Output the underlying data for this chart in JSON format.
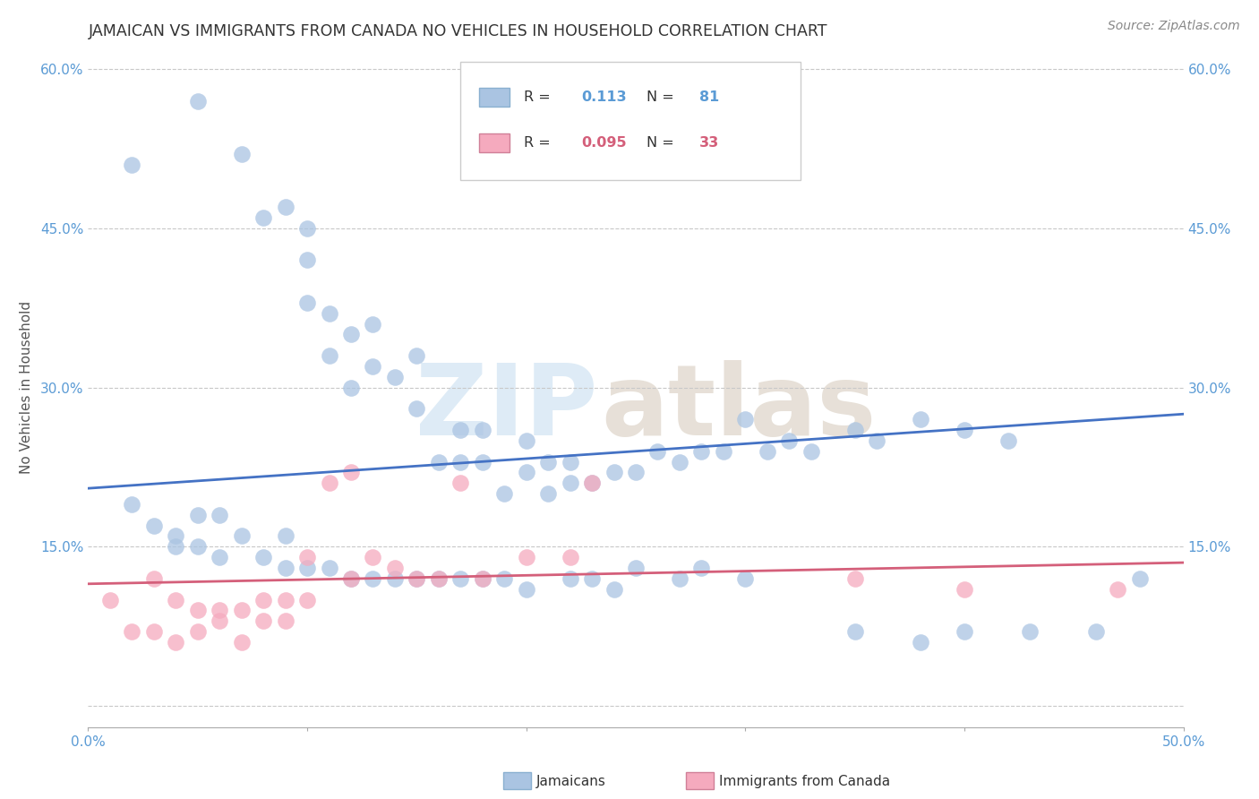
{
  "title": "JAMAICAN VS IMMIGRANTS FROM CANADA NO VEHICLES IN HOUSEHOLD CORRELATION CHART",
  "source": "Source: ZipAtlas.com",
  "ylabel": "No Vehicles in Household",
  "xlim": [
    0.0,
    0.5
  ],
  "ylim": [
    -0.02,
    0.62
  ],
  "xticks": [
    0.0,
    0.1,
    0.2,
    0.3,
    0.4,
    0.5
  ],
  "xticklabels": [
    "0.0%",
    "",
    "",
    "",
    "",
    "50.0%"
  ],
  "yticks": [
    0.0,
    0.15,
    0.3,
    0.45,
    0.6
  ],
  "yticklabels": [
    "",
    "15.0%",
    "30.0%",
    "45.0%",
    "60.0%"
  ],
  "blue_color": "#aac4e2",
  "pink_color": "#f5aabe",
  "blue_line_color": "#4472c4",
  "pink_line_color": "#d45f7a",
  "background_color": "#ffffff",
  "blue_line_x0": 0.0,
  "blue_line_y0": 0.205,
  "blue_line_x1": 0.5,
  "blue_line_y1": 0.275,
  "pink_line_x0": 0.0,
  "pink_line_y0": 0.115,
  "pink_line_x1": 0.5,
  "pink_line_y1": 0.135,
  "blue_x": [
    0.02,
    0.05,
    0.07,
    0.08,
    0.09,
    0.1,
    0.1,
    0.1,
    0.11,
    0.11,
    0.12,
    0.12,
    0.13,
    0.13,
    0.14,
    0.15,
    0.15,
    0.16,
    0.17,
    0.17,
    0.18,
    0.18,
    0.19,
    0.2,
    0.2,
    0.21,
    0.21,
    0.22,
    0.22,
    0.23,
    0.24,
    0.25,
    0.26,
    0.27,
    0.28,
    0.29,
    0.3,
    0.31,
    0.32,
    0.33,
    0.35,
    0.36,
    0.38,
    0.4,
    0.42,
    0.02,
    0.03,
    0.04,
    0.04,
    0.05,
    0.05,
    0.06,
    0.06,
    0.07,
    0.08,
    0.09,
    0.09,
    0.1,
    0.11,
    0.12,
    0.13,
    0.14,
    0.15,
    0.16,
    0.17,
    0.18,
    0.19,
    0.2,
    0.22,
    0.23,
    0.24,
    0.25,
    0.27,
    0.28,
    0.3,
    0.35,
    0.38,
    0.4,
    0.43,
    0.46,
    0.48
  ],
  "blue_y": [
    0.51,
    0.57,
    0.52,
    0.46,
    0.47,
    0.42,
    0.45,
    0.38,
    0.37,
    0.33,
    0.35,
    0.3,
    0.32,
    0.36,
    0.31,
    0.28,
    0.33,
    0.23,
    0.26,
    0.23,
    0.23,
    0.26,
    0.2,
    0.25,
    0.22,
    0.23,
    0.2,
    0.23,
    0.21,
    0.21,
    0.22,
    0.22,
    0.24,
    0.23,
    0.24,
    0.24,
    0.27,
    0.24,
    0.25,
    0.24,
    0.26,
    0.25,
    0.27,
    0.26,
    0.25,
    0.19,
    0.17,
    0.15,
    0.16,
    0.15,
    0.18,
    0.18,
    0.14,
    0.16,
    0.14,
    0.16,
    0.13,
    0.13,
    0.13,
    0.12,
    0.12,
    0.12,
    0.12,
    0.12,
    0.12,
    0.12,
    0.12,
    0.11,
    0.12,
    0.12,
    0.11,
    0.13,
    0.12,
    0.13,
    0.12,
    0.07,
    0.06,
    0.07,
    0.07,
    0.07,
    0.12
  ],
  "pink_x": [
    0.01,
    0.02,
    0.03,
    0.03,
    0.04,
    0.04,
    0.05,
    0.05,
    0.06,
    0.06,
    0.07,
    0.07,
    0.08,
    0.08,
    0.09,
    0.09,
    0.1,
    0.1,
    0.11,
    0.12,
    0.12,
    0.13,
    0.14,
    0.15,
    0.16,
    0.17,
    0.18,
    0.2,
    0.22,
    0.23,
    0.35,
    0.4,
    0.47
  ],
  "pink_y": [
    0.1,
    0.07,
    0.07,
    0.12,
    0.06,
    0.1,
    0.07,
    0.09,
    0.08,
    0.09,
    0.06,
    0.09,
    0.08,
    0.1,
    0.08,
    0.1,
    0.1,
    0.14,
    0.21,
    0.12,
    0.22,
    0.14,
    0.13,
    0.12,
    0.12,
    0.21,
    0.12,
    0.14,
    0.14,
    0.21,
    0.12,
    0.11,
    0.11
  ]
}
